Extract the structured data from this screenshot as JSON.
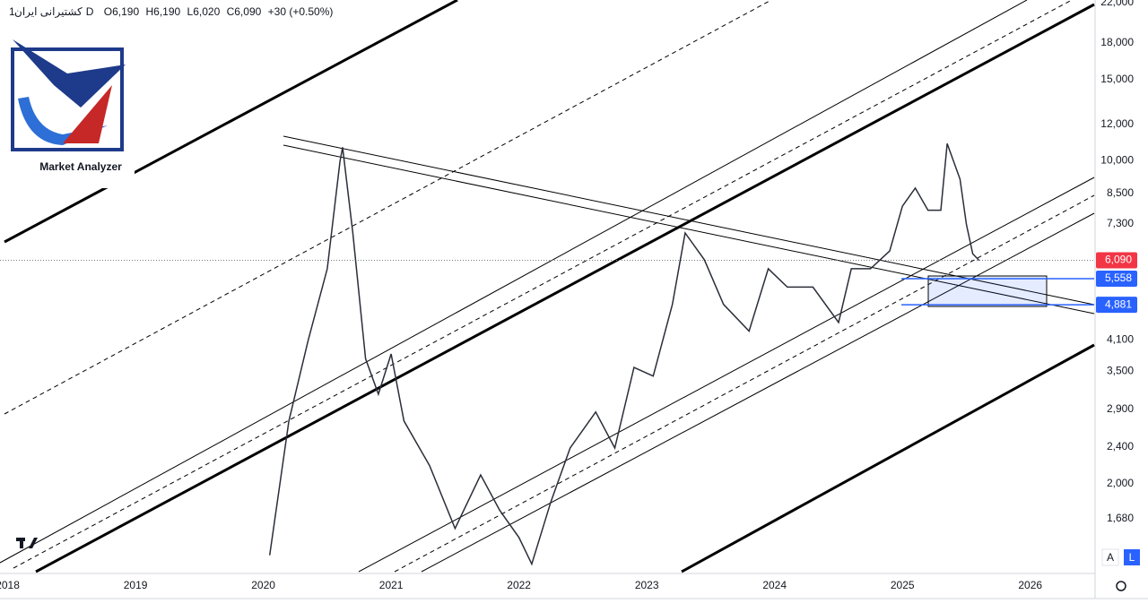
{
  "header": {
    "symbol": "کشتیرانی ایران",
    "interval": "1D",
    "open": "O6,190",
    "high": "H6,190",
    "low": "L6,020",
    "close": "C6,090",
    "change": "+30 (+0.50%)"
  },
  "logo_text": "Market Analyzer",
  "buttons": [
    "A",
    "L"
  ],
  "chart_data": {
    "type": "line",
    "color": "#2a2e39",
    "log_scale": true,
    "grid": false,
    "x": [
      2020.05,
      2020.2,
      2020.35,
      2020.5,
      2020.6,
      2020.62,
      2020.7,
      2020.8,
      2020.9,
      2021.0,
      2021.1,
      2021.3,
      2021.5,
      2021.7,
      2021.85,
      2022.0,
      2022.1,
      2022.25,
      2022.4,
      2022.6,
      2022.75,
      2022.9,
      2023.05,
      2023.2,
      2023.3,
      2023.45,
      2023.6,
      2023.8,
      2023.95,
      2024.1,
      2024.3,
      2024.5,
      2024.6,
      2024.75,
      2024.9,
      2025.0,
      2025.1,
      2025.2,
      2025.3,
      2025.35,
      2025.45,
      2025.5,
      2025.55,
      2025.6
    ],
    "values": [
      1400,
      2735,
      4080,
      5840,
      9980,
      10700,
      6980,
      3730,
      3125,
      3820,
      2735,
      2190,
      1600,
      2090,
      1750,
      1530,
      1340,
      1830,
      2390,
      2860,
      2390,
      3570,
      3420,
      4890,
      6980,
      6110,
      4890,
      4280,
      5840,
      5330,
      5330,
      4470,
      5840,
      5840,
      6380,
      7980,
      8730,
      7820,
      7820,
      10900,
      9130,
      7290,
      6290,
      6090
    ],
    "xlim": [
      2017.94,
      2026.5
    ],
    "xticks": [
      2018,
      2019,
      2020,
      2021,
      2022,
      2023,
      2024,
      2025,
      2026
    ],
    "ylim": [
      1290,
      22300
    ],
    "yticks": [
      {
        "value": 22000,
        "label": "22,000"
      },
      {
        "value": 18000,
        "label": "18,000"
      },
      {
        "value": 15000,
        "label": "15,000"
      },
      {
        "value": 12000,
        "label": "12,000"
      },
      {
        "value": 10000,
        "label": "10,000"
      },
      {
        "value": 8500,
        "label": "8,500"
      },
      {
        "value": 7300,
        "label": "7,300"
      },
      {
        "value": 4100,
        "label": "4,100"
      },
      {
        "value": 3500,
        "label": "3,500"
      },
      {
        "value": 2900,
        "label": "2,900"
      },
      {
        "value": 2400,
        "label": "2,400"
      },
      {
        "value": 2000,
        "label": "2,000"
      },
      {
        "value": 1680,
        "label": "1,680"
      }
    ],
    "price_levels": [
      {
        "value": 6090,
        "label": "6,090",
        "color": "#f23645"
      },
      {
        "value": 5558,
        "label": "5,558",
        "color": "#2962ff"
      },
      {
        "value": 4881,
        "label": "4,881",
        "color": "#2962ff"
      }
    ]
  }
}
